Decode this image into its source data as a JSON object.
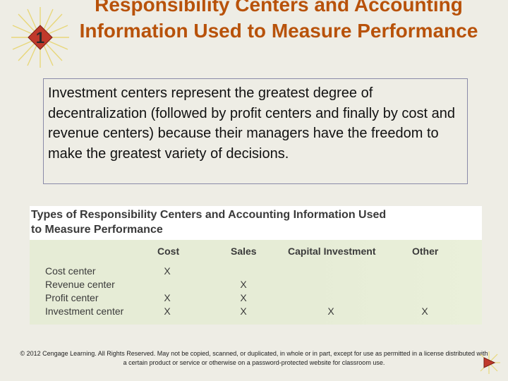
{
  "slide": {
    "badge_number": "1",
    "title": "Responsibility Centers and Accounting Information Used to Measure Performance",
    "body_text": "Investment centers represent the greatest degree of decentralization (followed by profit centers and finally by cost and revenue centers) because their managers have the freedom to make the greatest variety of decisions.",
    "footer": "© 2012 Cengage Learning. All Rights Reserved. May not be copied, scanned, or duplicated, in whole or in part, except for use as permitted in a license distributed with a certain product or service or otherwise on a password-protected website for classroom use."
  },
  "table": {
    "title": "Types of Responsibility Centers and Accounting Information Used to Measure Performance",
    "columns": [
      "Cost",
      "Sales",
      "Capital Investment",
      "Other"
    ],
    "rows": [
      {
        "label": "Cost center",
        "marks": [
          "X",
          "",
          "",
          ""
        ]
      },
      {
        "label": "Revenue center",
        "marks": [
          "",
          "X",
          "",
          ""
        ]
      },
      {
        "label": "Profit center",
        "marks": [
          "X",
          "X",
          "",
          ""
        ]
      },
      {
        "label": "Investment center",
        "marks": [
          "X",
          "X",
          "X",
          "X"
        ]
      }
    ]
  },
  "colors": {
    "title": "#b8520a",
    "background": "#eeede5",
    "table_body": "#e6ecd6",
    "badge": "#c0392b"
  },
  "icons": {
    "badge": "starburst-number-badge",
    "next": "next-arrow-icon"
  }
}
